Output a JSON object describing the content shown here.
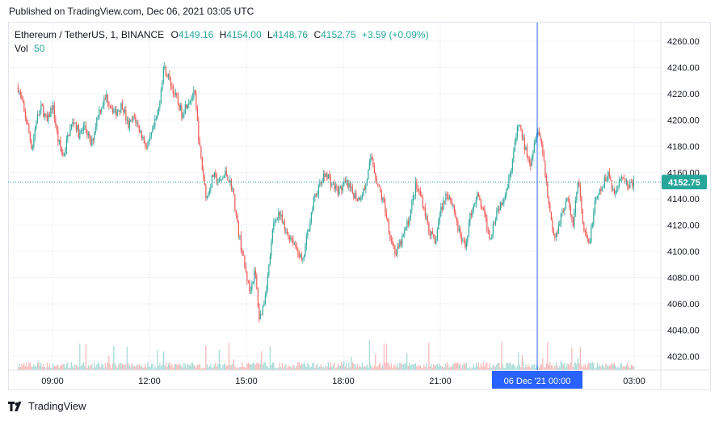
{
  "published": "Published on TradingView.com, Dec 06, 2021 03:05 UTC",
  "legend": {
    "symbol": "Ethereum / TetherUS, 1, BINANCE",
    "open_label": "O",
    "open": "4149.16",
    "high_label": "H",
    "high": "4154.00",
    "low_label": "L",
    "low": "4148.76",
    "close_label": "C",
    "close": "4152.75",
    "change": "+3.59 (+0.09%)",
    "vol_label": "Vol",
    "vol_value": "50"
  },
  "footer": {
    "brand": "TradingView",
    "logo_icon": "tradingview-logo-icon"
  },
  "colors": {
    "up": "#26a69a",
    "down": "#ef5350",
    "crosshair": "#2962ff",
    "grid": "#f0f3fa"
  },
  "chart_data": {
    "type": "candlestick",
    "symbol": "Ethereum / TetherUS",
    "interval": "1",
    "exchange": "BINANCE",
    "ylim": [
      4010,
      4270
    ],
    "y_ticks": [
      "4260.00",
      "4240.00",
      "4220.00",
      "4200.00",
      "4180.00",
      "4160.00",
      "4140.00",
      "4120.00",
      "4100.00",
      "4080.00",
      "4060.00",
      "4040.00",
      "4020.00"
    ],
    "x_ticks": [
      "09:00",
      "12:00",
      "15:00",
      "18:00",
      "21:00",
      "03:00"
    ],
    "crosshair_label": "06 Dec '21  00:00",
    "last_price_label": "4152.75",
    "last_price": 4152.75,
    "close_path": [
      [
        "07:56",
        4225
      ],
      [
        "08:04",
        4212
      ],
      [
        "08:14",
        4195
      ],
      [
        "08:22",
        4178
      ],
      [
        "08:30",
        4200
      ],
      [
        "08:40",
        4210
      ],
      [
        "08:50",
        4198
      ],
      [
        "09:00",
        4212
      ],
      [
        "09:10",
        4185
      ],
      [
        "09:20",
        4172
      ],
      [
        "09:30",
        4190
      ],
      [
        "09:40",
        4200
      ],
      [
        "09:50",
        4188
      ],
      [
        "10:00",
        4196
      ],
      [
        "10:12",
        4180
      ],
      [
        "10:24",
        4205
      ],
      [
        "10:40",
        4218
      ],
      [
        "10:56",
        4205
      ],
      [
        "11:10",
        4212
      ],
      [
        "11:20",
        4195
      ],
      [
        "11:32",
        4202
      ],
      [
        "11:44",
        4190
      ],
      [
        "11:56",
        4178
      ],
      [
        "12:06",
        4192
      ],
      [
        "12:16",
        4205
      ],
      [
        "12:26",
        4240
      ],
      [
        "12:36",
        4232
      ],
      [
        "12:48",
        4218
      ],
      [
        "13:00",
        4205
      ],
      [
        "13:12",
        4215
      ],
      [
        "13:24",
        4220
      ],
      [
        "13:34",
        4175
      ],
      [
        "13:46",
        4140
      ],
      [
        "13:58",
        4158
      ],
      [
        "14:10",
        4152
      ],
      [
        "14:22",
        4160
      ],
      [
        "14:34",
        4148
      ],
      [
        "14:44",
        4118
      ],
      [
        "14:56",
        4090
      ],
      [
        "15:06",
        4070
      ],
      [
        "15:16",
        4085
      ],
      [
        "15:24",
        4048
      ],
      [
        "15:32",
        4060
      ],
      [
        "15:40",
        4082
      ],
      [
        "15:50",
        4120
      ],
      [
        "16:00",
        4130
      ],
      [
        "16:12",
        4115
      ],
      [
        "16:24",
        4110
      ],
      [
        "16:36",
        4100
      ],
      [
        "16:44",
        4090
      ],
      [
        "16:56",
        4120
      ],
      [
        "17:06",
        4140
      ],
      [
        "17:16",
        4150
      ],
      [
        "17:28",
        4160
      ],
      [
        "17:40",
        4150
      ],
      [
        "17:52",
        4146
      ],
      [
        "18:04",
        4152
      ],
      [
        "18:16",
        4145
      ],
      [
        "18:28",
        4140
      ],
      [
        "18:40",
        4148
      ],
      [
        "18:52",
        4172
      ],
      [
        "19:04",
        4150
      ],
      [
        "19:16",
        4135
      ],
      [
        "19:28",
        4110
      ],
      [
        "19:38",
        4098
      ],
      [
        "19:50",
        4110
      ],
      [
        "20:02",
        4125
      ],
      [
        "20:14",
        4150
      ],
      [
        "20:26",
        4140
      ],
      [
        "20:38",
        4118
      ],
      [
        "20:50",
        4105
      ],
      [
        "21:00",
        4130
      ],
      [
        "21:12",
        4145
      ],
      [
        "21:24",
        4135
      ],
      [
        "21:34",
        4115
      ],
      [
        "21:46",
        4102
      ],
      [
        "21:56",
        4128
      ],
      [
        "22:08",
        4143
      ],
      [
        "22:20",
        4130
      ],
      [
        "22:32",
        4110
      ],
      [
        "22:44",
        4130
      ],
      [
        "22:56",
        4140
      ],
      [
        "23:06",
        4152
      ],
      [
        "23:18",
        4180
      ],
      [
        "23:26",
        4198
      ],
      [
        "23:36",
        4180
      ],
      [
        "23:48",
        4168
      ],
      [
        "00:00",
        4195
      ],
      [
        "00:10",
        4178
      ],
      [
        "00:20",
        4140
      ],
      [
        "00:32",
        4108
      ],
      [
        "00:44",
        4128
      ],
      [
        "00:56",
        4140
      ],
      [
        "01:06",
        4120
      ],
      [
        "01:16",
        4155
      ],
      [
        "01:26",
        4115
      ],
      [
        "01:36",
        4105
      ],
      [
        "01:48",
        4138
      ],
      [
        "02:00",
        4148
      ],
      [
        "02:12",
        4160
      ],
      [
        "02:24",
        4142
      ],
      [
        "02:36",
        4160
      ],
      [
        "02:48",
        4150
      ],
      [
        "03:00",
        4153
      ]
    ],
    "volume_note": "volume histogram along the bottom of the price pane"
  }
}
